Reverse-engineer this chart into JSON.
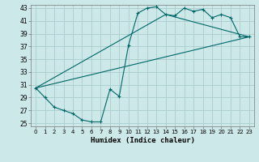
{
  "xlabel": "Humidex (Indice chaleur)",
  "background_color": "#cce8e8",
  "line_color": "#006666",
  "grid_color": "#aacccc",
  "xlim": [
    -0.5,
    23.5
  ],
  "ylim": [
    24.5,
    43.5
  ],
  "xticks": [
    0,
    1,
    2,
    3,
    4,
    5,
    6,
    7,
    8,
    9,
    10,
    11,
    12,
    13,
    14,
    15,
    16,
    17,
    18,
    19,
    20,
    21,
    22,
    23
  ],
  "yticks": [
    25,
    27,
    29,
    31,
    33,
    35,
    37,
    39,
    41,
    43
  ],
  "line1_x": [
    0,
    1,
    2,
    3,
    4,
    5,
    6,
    7,
    8,
    9,
    10,
    11,
    12,
    13,
    14,
    15,
    16,
    17,
    18,
    19,
    20,
    21,
    22,
    23
  ],
  "line1_y": [
    30.5,
    29.0,
    27.5,
    27.0,
    26.5,
    25.5,
    25.2,
    25.2,
    30.3,
    29.2,
    37.2,
    42.2,
    43.0,
    43.2,
    42.0,
    41.8,
    43.0,
    42.5,
    42.8,
    41.5,
    42.0,
    41.5,
    38.5,
    38.5
  ],
  "line2_x": [
    0,
    23
  ],
  "line2_y": [
    30.5,
    38.5
  ],
  "line3_x": [
    0,
    14,
    23
  ],
  "line3_y": [
    30.5,
    42.0,
    38.5
  ],
  "xtick_fontsize": 5.0,
  "ytick_fontsize": 5.5,
  "xlabel_fontsize": 6.5
}
